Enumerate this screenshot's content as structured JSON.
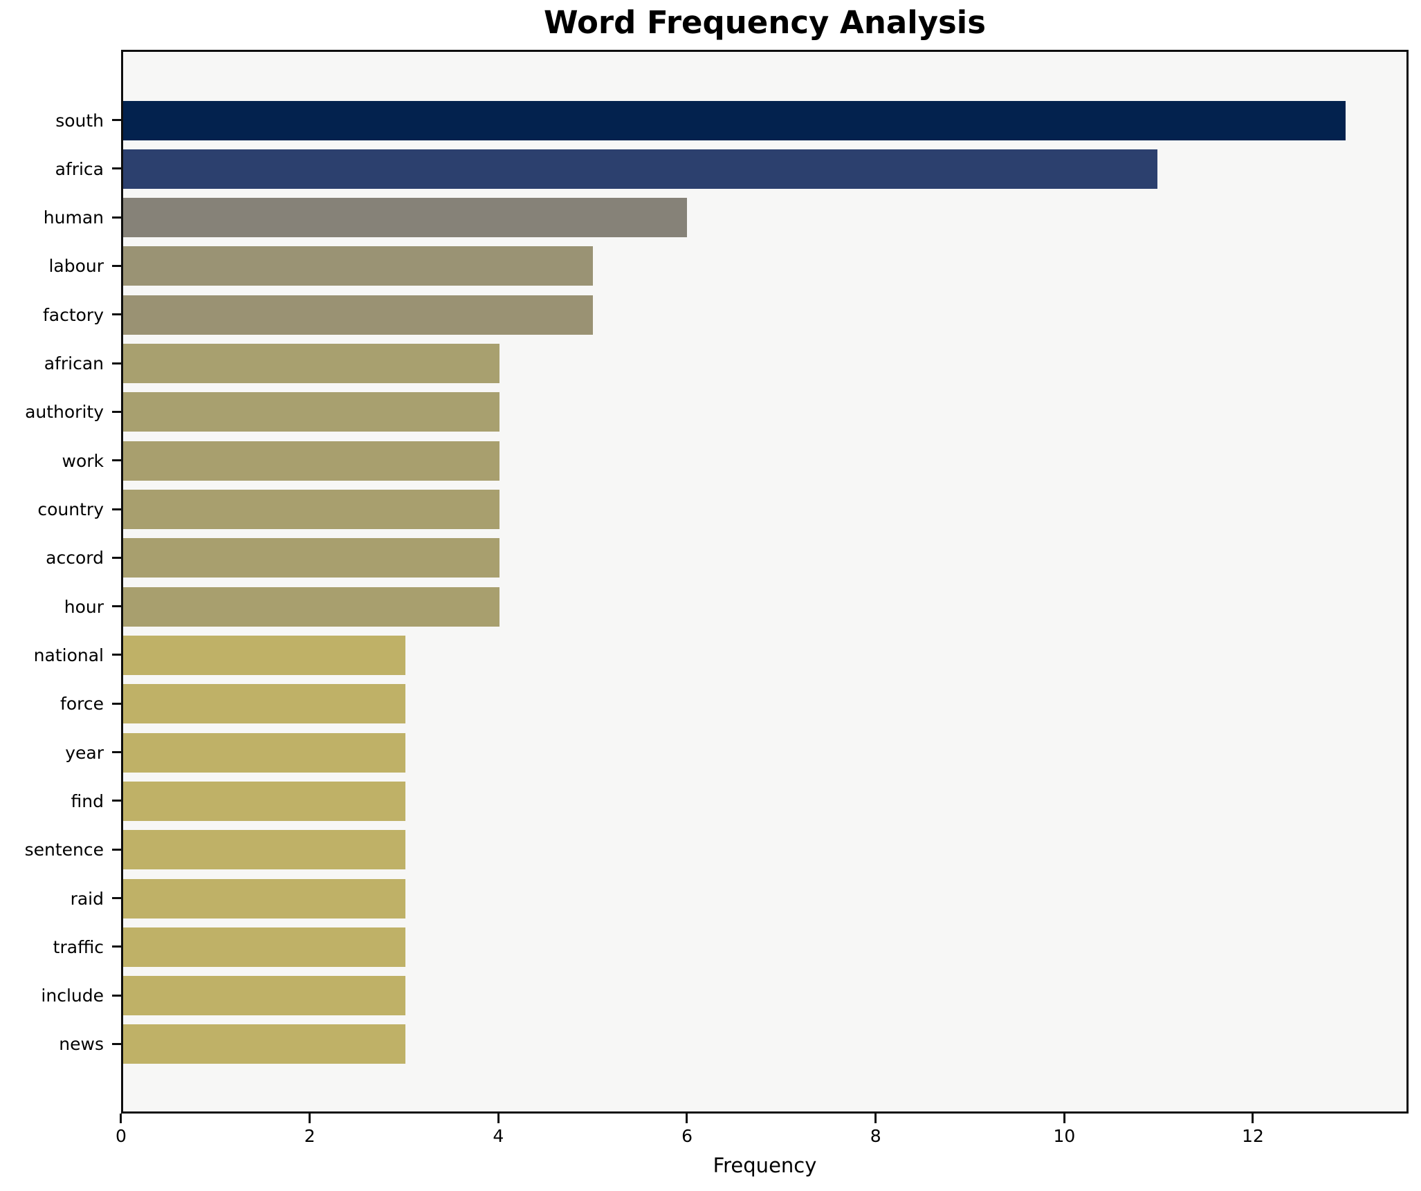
{
  "title": "Word Frequency Analysis",
  "chart_data": {
    "type": "bar",
    "orientation": "horizontal",
    "title": "Word Frequency Analysis",
    "xlabel": "Frequency",
    "ylabel": "",
    "grid": false,
    "plot_background": "#f7f7f6",
    "figure_background": "#ffffff",
    "frame_color": "#0e0e0e",
    "xticks": [
      0,
      2,
      4,
      6,
      8,
      10,
      12
    ],
    "xlim": [
      0,
      13.65
    ],
    "categories": [
      "south",
      "africa",
      "human",
      "labour",
      "factory",
      "african",
      "authority",
      "work",
      "country",
      "accord",
      "hour",
      "national",
      "force",
      "year",
      "find",
      "sentence",
      "raid",
      "traffic",
      "include",
      "news"
    ],
    "values": [
      13,
      11,
      6,
      5,
      5,
      4,
      4,
      4,
      4,
      4,
      4,
      3,
      3,
      3,
      3,
      3,
      3,
      3,
      3,
      3
    ],
    "bar_colors": [
      "#03224e",
      "#2c406e",
      "#868278",
      "#9a9374",
      "#9a9273",
      "#a8a06f",
      "#a8a06f",
      "#a89f6e",
      "#a89f6e",
      "#a89f6e",
      "#a89f6e",
      "#bfb167",
      "#bfb167",
      "#bfb167",
      "#bfb167",
      "#bfb167",
      "#bfb167",
      "#bfb167",
      "#bfb167",
      "#bfb167"
    ]
  }
}
